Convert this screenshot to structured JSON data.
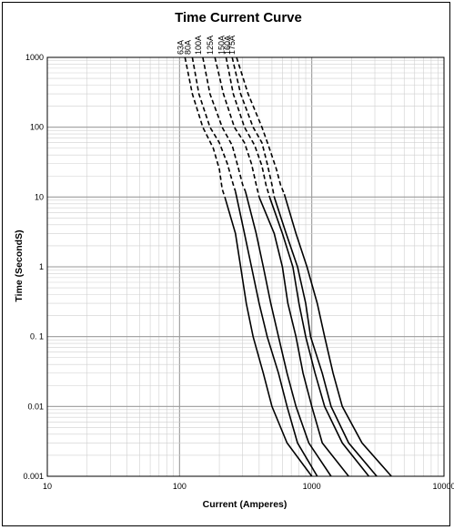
{
  "chart_data": {
    "type": "line",
    "title": "Time Current Curve",
    "xlabel": "Current  (Amperes)",
    "ylabel": "Time (SecondS)",
    "xscale": "log",
    "yscale": "log",
    "xlim": [
      10,
      10000
    ],
    "ylim": [
      0.001,
      1000
    ],
    "grid": true,
    "x_ticks": [
      "10",
      "100",
      "1000",
      "10000"
    ],
    "y_ticks": [
      "0.001",
      "0.01",
      "0. 1",
      "1",
      "10",
      "100",
      "1000"
    ],
    "note": "dashed segments above 10 s, solid segments below",
    "series": [
      {
        "name": "63A",
        "points": [
          [
            110,
            1000
          ],
          [
            125,
            300
          ],
          [
            150,
            100
          ],
          [
            180,
            50
          ],
          [
            200,
            25
          ],
          [
            210,
            13
          ],
          [
            220,
            10
          ],
          [
            265,
            3
          ],
          [
            290,
            1
          ],
          [
            320,
            0.3
          ],
          [
            360,
            0.1
          ],
          [
            430,
            0.03
          ],
          [
            500,
            0.01
          ],
          [
            650,
            0.003
          ],
          [
            1000,
            0.001
          ]
        ]
      },
      {
        "name": "80A",
        "points": [
          [
            125,
            1000
          ],
          [
            140,
            300
          ],
          [
            170,
            100
          ],
          [
            200,
            60
          ],
          [
            230,
            30
          ],
          [
            255,
            15
          ],
          [
            265,
            12
          ],
          [
            310,
            3
          ],
          [
            350,
            1
          ],
          [
            400,
            0.3
          ],
          [
            460,
            0.1
          ],
          [
            560,
            0.03
          ],
          [
            650,
            0.01
          ],
          [
            780,
            0.003
          ],
          [
            1100,
            0.001
          ]
        ]
      },
      {
        "name": "100A",
        "points": [
          [
            150,
            1000
          ],
          [
            170,
            300
          ],
          [
            210,
            100
          ],
          [
            250,
            55
          ],
          [
            280,
            25
          ],
          [
            300,
            15
          ],
          [
            315,
            12
          ],
          [
            380,
            3
          ],
          [
            430,
            1
          ],
          [
            490,
            0.3
          ],
          [
            560,
            0.1
          ],
          [
            650,
            0.03
          ],
          [
            760,
            0.01
          ],
          [
            950,
            0.003
          ],
          [
            1400,
            0.001
          ]
        ]
      },
      {
        "name": "125A",
        "points": [
          [
            185,
            1000
          ],
          [
            215,
            300
          ],
          [
            260,
            100
          ],
          [
            310,
            60
          ],
          [
            350,
            30
          ],
          [
            380,
            15
          ],
          [
            400,
            10
          ],
          [
            520,
            3
          ],
          [
            600,
            1
          ],
          [
            660,
            0.3
          ],
          [
            760,
            0.1
          ],
          [
            860,
            0.03
          ],
          [
            1000,
            0.01
          ],
          [
            1200,
            0.003
          ],
          [
            1900,
            0.001
          ]
        ]
      },
      {
        "name": "150A",
        "points": [
          [
            225,
            1000
          ],
          [
            255,
            300
          ],
          [
            310,
            100
          ],
          [
            370,
            55
          ],
          [
            420,
            28
          ],
          [
            450,
            15
          ],
          [
            480,
            10
          ],
          [
            600,
            3
          ],
          [
            720,
            1
          ],
          [
            800,
            0.3
          ],
          [
            900,
            0.1
          ],
          [
            1060,
            0.03
          ],
          [
            1250,
            0.01
          ],
          [
            1700,
            0.003
          ],
          [
            2700,
            0.001
          ]
        ]
      },
      {
        "name": "160A",
        "points": [
          [
            250,
            1000
          ],
          [
            290,
            300
          ],
          [
            360,
            100
          ],
          [
            420,
            60
          ],
          [
            460,
            30
          ],
          [
            500,
            15
          ],
          [
            520,
            10
          ],
          [
            640,
            3
          ],
          [
            780,
            1
          ],
          [
            900,
            0.3
          ],
          [
            980,
            0.1
          ],
          [
            1200,
            0.03
          ],
          [
            1400,
            0.01
          ],
          [
            1900,
            0.003
          ],
          [
            3100,
            0.001
          ]
        ]
      },
      {
        "name": "175A",
        "points": [
          [
            270,
            1000
          ],
          [
            330,
            300
          ],
          [
            420,
            100
          ],
          [
            470,
            55
          ],
          [
            540,
            25
          ],
          [
            580,
            15
          ],
          [
            620,
            11
          ],
          [
            760,
            3
          ],
          [
            920,
            1
          ],
          [
            1100,
            0.3
          ],
          [
            1250,
            0.1
          ],
          [
            1450,
            0.03
          ],
          [
            1700,
            0.01
          ],
          [
            2400,
            0.003
          ],
          [
            4000,
            0.001
          ]
        ]
      }
    ]
  }
}
